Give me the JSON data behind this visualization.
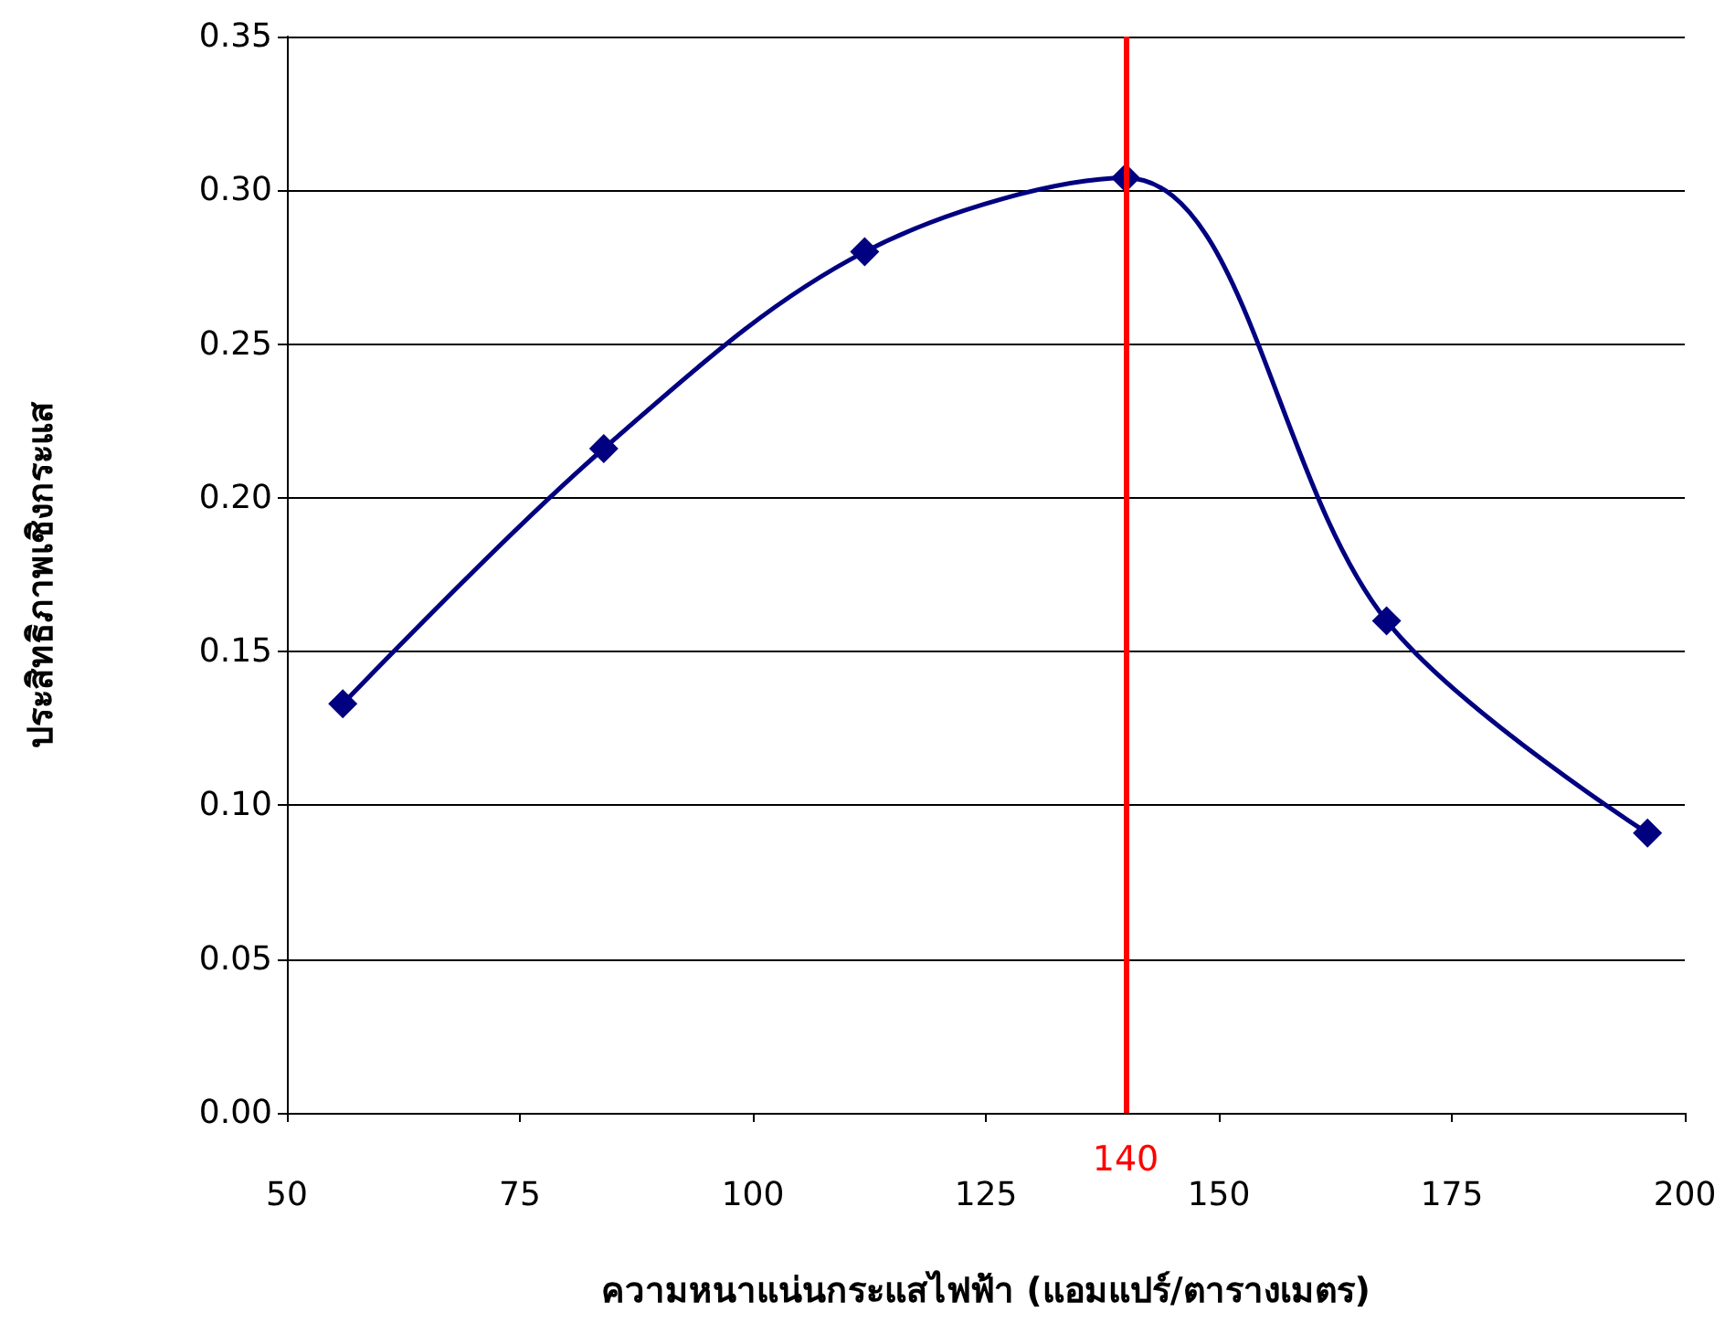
{
  "chart_data": {
    "type": "line",
    "xlabel": "ความหนาแน่นกระแสไฟฟ้า (แอมแปร์/ตารางเมตร)",
    "ylabel": "ประสิทธิภาพเชิงกระแส",
    "x": [
      56,
      84,
      112,
      140,
      168,
      196
    ],
    "series": [
      {
        "color": "#000080",
        "values": [
          0.133,
          0.216,
          0.28,
          0.304,
          0.16,
          0.091
        ]
      }
    ],
    "xlim": [
      50,
      200
    ],
    "xticks": [
      50,
      75,
      100,
      125,
      150,
      175,
      200
    ],
    "ylim": [
      0,
      0.35
    ],
    "yticks": [
      {
        "value": 0,
        "label": "0.00"
      },
      {
        "value": 0.05,
        "label": "0.05"
      },
      {
        "value": 0.1,
        "label": "0.10"
      },
      {
        "value": 0.15,
        "label": "0.15"
      },
      {
        "value": 0.2,
        "label": "0.20"
      },
      {
        "value": 0.25,
        "label": "0.25"
      },
      {
        "value": 0.3,
        "label": "0.30"
      },
      {
        "value": 0.35,
        "label": "0.35"
      }
    ],
    "ref_lines": [
      {
        "axis": "x",
        "value": 140,
        "label": "140",
        "color": "#ff0000"
      }
    ],
    "grid": "y",
    "marker": "diamond",
    "line_style": "solid"
  }
}
